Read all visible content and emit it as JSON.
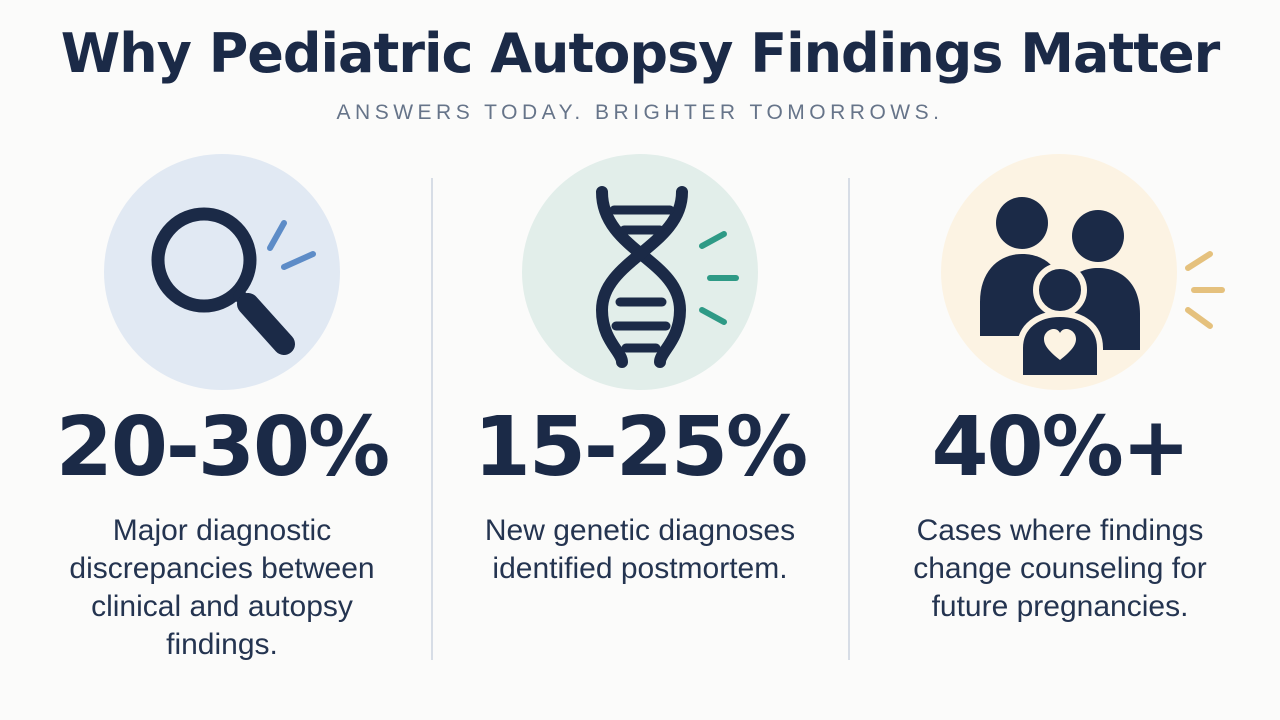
{
  "header": {
    "title": "Why Pediatric Autopsy Findings Matter",
    "subtitle": "ANSWERS TODAY. BRIGHTER TOMORROWS."
  },
  "colors": {
    "navy": "#1b2a47",
    "circle_blue": "#e1e9f3",
    "circle_green": "#e2eeea",
    "circle_cream": "#fcf3e3",
    "accent_blue": "#5d8cc7",
    "accent_teal": "#2e9a86",
    "accent_gold": "#e5c17d"
  },
  "stats": [
    {
      "icon": "magnifying-glass-icon",
      "value": "20-30%",
      "description": "Major diagnostic discrepancies between clinical and autopsy findings."
    },
    {
      "icon": "dna-helix-icon",
      "value": "15-25%",
      "description": "New genetic diagnoses identified postmortem."
    },
    {
      "icon": "family-heart-icon",
      "value": "40%+",
      "description": "Cases where findings change counseling for future pregnancies."
    }
  ]
}
